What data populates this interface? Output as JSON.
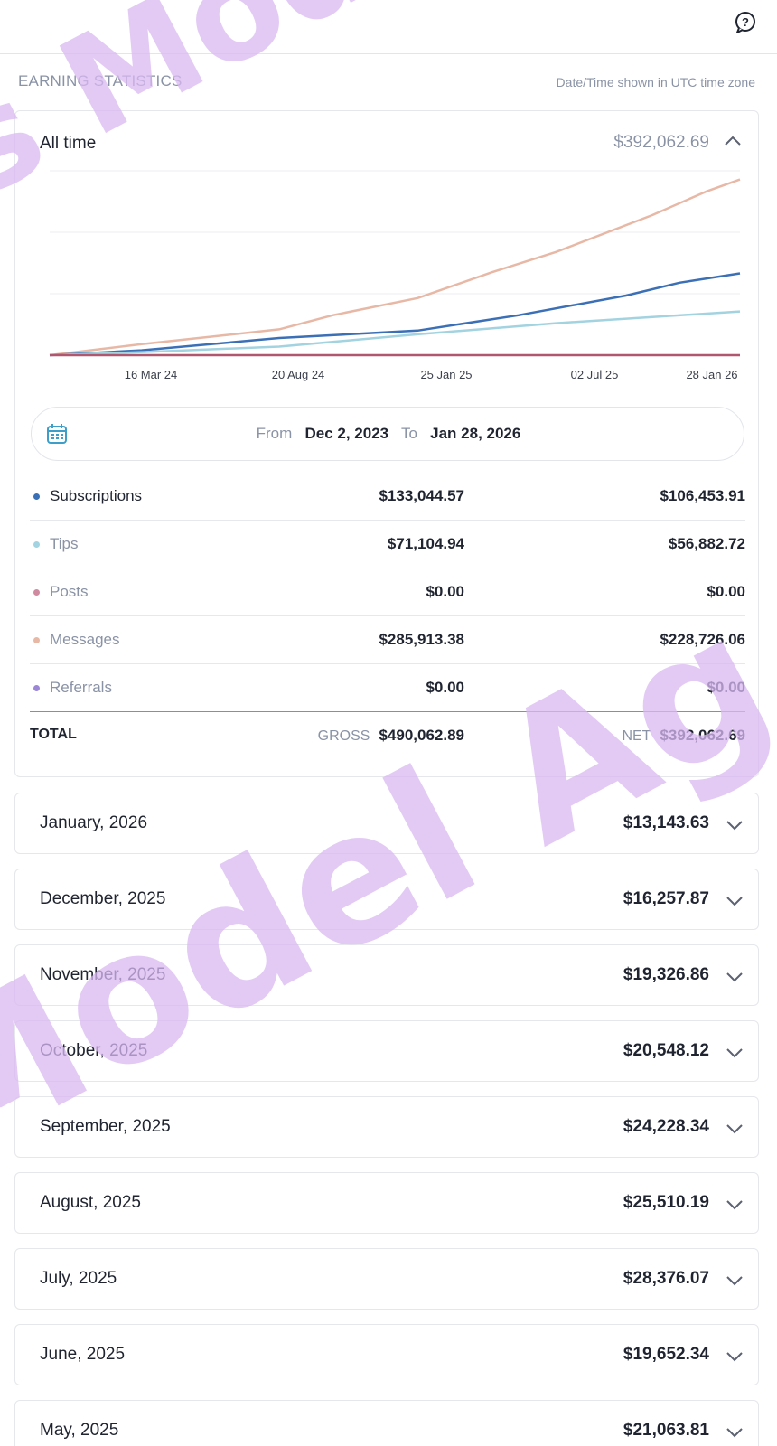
{
  "header": {
    "help_icon": "help-circle-icon"
  },
  "section": {
    "title": "EARNING STATISTICS",
    "note": "Date/Time shown in UTC time zone"
  },
  "summary": {
    "title": "All time",
    "total": "$392,062.69",
    "expand_icon": "chevron-up-icon"
  },
  "chart_data": {
    "type": "line",
    "x_ticks": [
      "16 Mar 24",
      "20 Aug 24",
      "25 Jan 25",
      "02 Jul 25",
      "28 Jan 26"
    ],
    "x_start": "2023-12-02",
    "x_end": "2026-01-28",
    "ylim": [
      0,
      300000
    ],
    "grid": true,
    "series": [
      {
        "name": "Messages",
        "color": "#e8b8a6",
        "points": [
          [
            "2023-12-02",
            0
          ],
          [
            "2024-03-16",
            18000
          ],
          [
            "2024-08-20",
            42000
          ],
          [
            "2024-10-20",
            65000
          ],
          [
            "2025-01-25",
            93000
          ],
          [
            "2025-04-20",
            135000
          ],
          [
            "2025-07-02",
            168000
          ],
          [
            "2025-10-20",
            228000
          ],
          [
            "2025-12-20",
            266000
          ],
          [
            "2026-01-28",
            285913.38
          ]
        ]
      },
      {
        "name": "Subscriptions",
        "color": "#3b6fb6",
        "points": [
          [
            "2023-12-02",
            0
          ],
          [
            "2024-03-16",
            8000
          ],
          [
            "2024-08-20",
            28000
          ],
          [
            "2025-01-25",
            40000
          ],
          [
            "2025-05-20",
            65000
          ],
          [
            "2025-09-20",
            97000
          ],
          [
            "2025-11-20",
            118000
          ],
          [
            "2026-01-28",
            133044.57
          ]
        ]
      },
      {
        "name": "Tips",
        "color": "#a3d3e0",
        "points": [
          [
            "2023-12-02",
            0
          ],
          [
            "2024-03-16",
            5000
          ],
          [
            "2024-08-20",
            14000
          ],
          [
            "2025-01-25",
            34000
          ],
          [
            "2025-07-02",
            52000
          ],
          [
            "2026-01-28",
            71104.94
          ]
        ]
      },
      {
        "name": "Posts",
        "color": "#b0566e",
        "points": [
          [
            "2023-12-02",
            0
          ],
          [
            "2026-01-28",
            0
          ]
        ]
      }
    ]
  },
  "range": {
    "calendar_icon": "calendar-icon",
    "from_label": "From",
    "from_value": "Dec 2, 2023",
    "to_label": "To",
    "to_value": "Jan 28, 2026"
  },
  "breakdown": [
    {
      "label": "Subscriptions",
      "gross": "$133,044.57",
      "net": "$106,453.91",
      "color": "#3b6fb6"
    },
    {
      "label": "Tips",
      "gross": "$71,104.94",
      "net": "$56,882.72",
      "color": "#a3d3e0"
    },
    {
      "label": "Posts",
      "gross": "$0.00",
      "net": "$0.00",
      "color": "#d08aa0"
    },
    {
      "label": "Messages",
      "gross": "$285,913.38",
      "net": "$228,726.06",
      "color": "#e8b8a6"
    },
    {
      "label": "Referrals",
      "gross": "$0.00",
      "net": "$0.00",
      "color": "#9b87d6"
    }
  ],
  "total": {
    "label": "TOTAL",
    "gross_tag": "GROSS",
    "gross": "$490,062.89",
    "net_tag": "NET",
    "net": "$392,062.69"
  },
  "months": [
    {
      "label": "January, 2026",
      "amount": "$13,143.63"
    },
    {
      "label": "December, 2025",
      "amount": "$16,257.87"
    },
    {
      "label": "November, 2025",
      "amount": "$19,326.86"
    },
    {
      "label": "October, 2025",
      "amount": "$20,548.12"
    },
    {
      "label": "September, 2025",
      "amount": "$24,228.34"
    },
    {
      "label": "August, 2025",
      "amount": "$25,510.19"
    },
    {
      "label": "July, 2025",
      "amount": "$28,376.07"
    },
    {
      "label": "June, 2025",
      "amount": "$19,652.34"
    },
    {
      "label": "May, 2025",
      "amount": "$21,063.81"
    }
  ],
  "watermark": {
    "text": "s Model Ag",
    "color": "#d9b8f2"
  }
}
